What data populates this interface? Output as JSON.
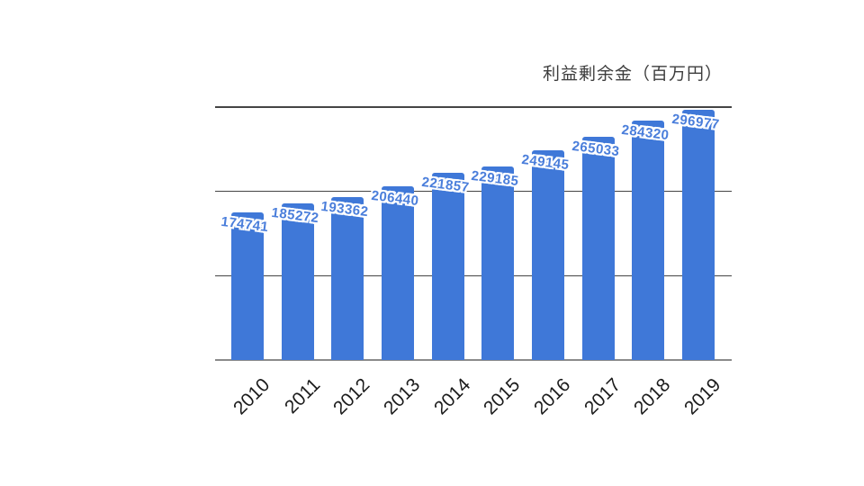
{
  "chart_data": {
    "type": "bar",
    "title": "利益剰余金（百万円）",
    "categories": [
      "2010",
      "2011",
      "2012",
      "2013",
      "2014",
      "2015",
      "2016",
      "2017",
      "2018",
      "2019"
    ],
    "values": [
      174741,
      185272,
      193362,
      206440,
      221857,
      229185,
      249145,
      265033,
      284320,
      296977
    ],
    "ylim": [
      0,
      300000
    ],
    "gridline_values": [
      100000,
      200000,
      300000
    ],
    "legend": "none",
    "grid": "horizontal",
    "colors": {
      "bar": "#3f78d8",
      "value_label": "#4a7edb",
      "gridline": "#454545",
      "axis_line": "#8a8a8a",
      "title": "#3d3d3d",
      "tick_label": "#1b1b1b",
      "background": "#ffffff"
    }
  }
}
